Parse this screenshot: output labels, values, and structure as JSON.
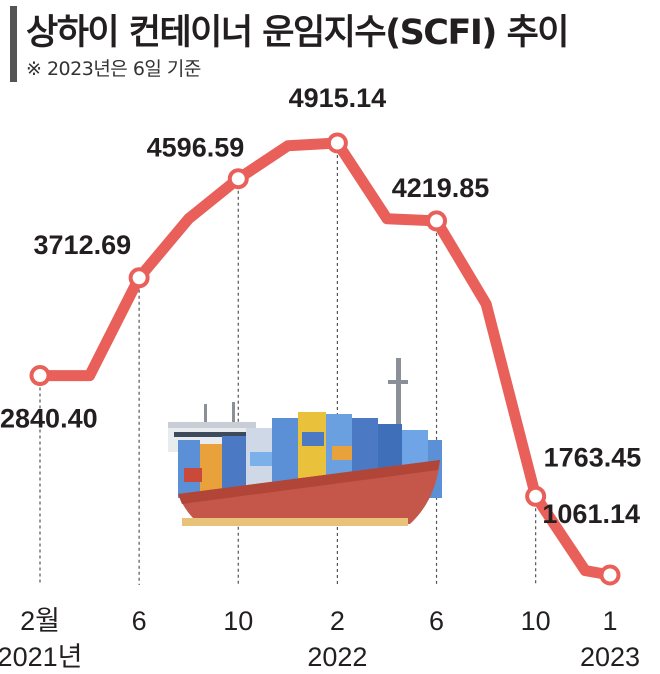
{
  "header": {
    "title": "상하이 컨테이너 운임지수(SCFI) 추이",
    "note": "※ 2023년은 6일 기준"
  },
  "colors": {
    "line": "#e9605a",
    "marker_fill": "#ffffff",
    "guide": "#555555"
  },
  "chart_data": {
    "type": "line",
    "title": "상하이 컨테이너 운임지수(SCFI) 추이",
    "x_tick_labels": [
      "2월",
      "6",
      "10",
      "2",
      "6",
      "10",
      "1"
    ],
    "year_labels": [
      "2021년",
      "2022",
      "2023"
    ],
    "points": [
      {
        "x": "2021-02",
        "y": 2840.4,
        "label": "2840.40",
        "marker": true
      },
      {
        "x": "2021-04",
        "y": 2840.4,
        "label": "",
        "marker": false
      },
      {
        "x": "2021-06",
        "y": 3712.69,
        "label": "3712.69",
        "marker": true
      },
      {
        "x": "2021-08",
        "y": 4240,
        "label": "",
        "marker": false
      },
      {
        "x": "2021-10",
        "y": 4596.59,
        "label": "4596.59",
        "marker": true
      },
      {
        "x": "2021-12",
        "y": 4890,
        "label": "",
        "marker": false
      },
      {
        "x": "2022-02",
        "y": 4915.14,
        "label": "4915.14",
        "marker": true
      },
      {
        "x": "2022-04",
        "y": 4240,
        "label": "",
        "marker": false
      },
      {
        "x": "2022-06",
        "y": 4219.85,
        "label": "4219.85",
        "marker": true
      },
      {
        "x": "2022-08",
        "y": 3480,
        "label": "",
        "marker": false
      },
      {
        "x": "2022-10",
        "y": 1763.45,
        "label": "1763.45",
        "marker": true
      },
      {
        "x": "2022-12",
        "y": 1100,
        "label": "",
        "marker": false
      },
      {
        "x": "2023-01",
        "y": 1061.14,
        "label": "1061.14",
        "marker": true
      }
    ],
    "ylim": [
      0,
      5500
    ],
    "grid": false
  }
}
